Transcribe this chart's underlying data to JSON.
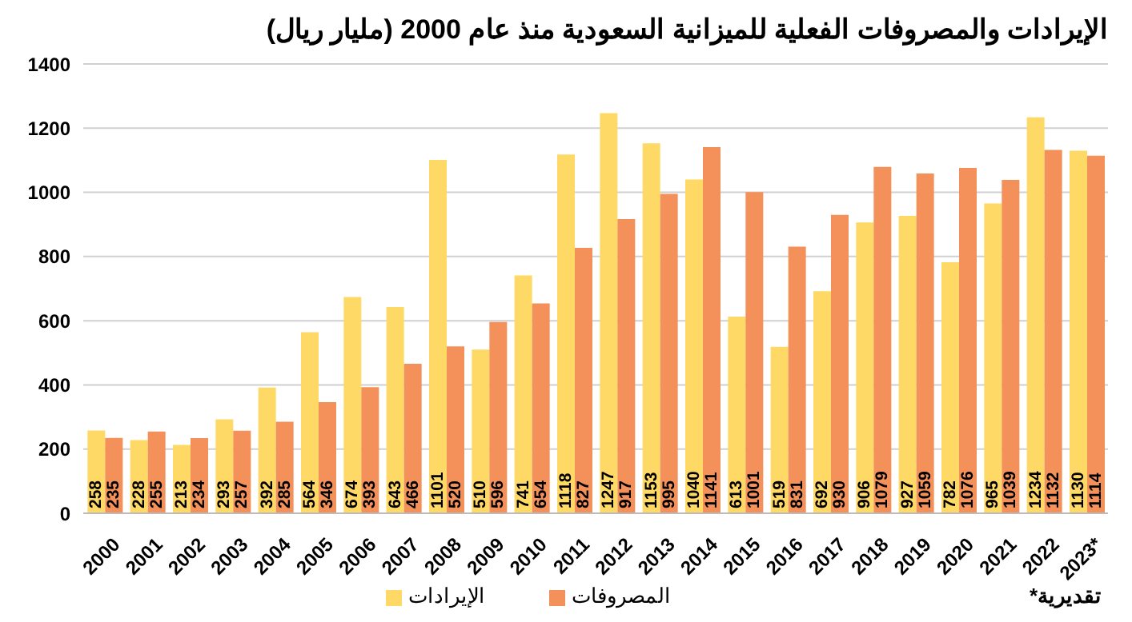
{
  "chart_data": {
    "type": "bar",
    "title": "الإيرادات والمصروفات الفعلية للميزانية السعودية منذ عام 2000 (مليار ريال)",
    "categories": [
      "2000",
      "2001",
      "2002",
      "2003",
      "2004",
      "2005",
      "2006",
      "2007",
      "2008",
      "2009",
      "2010",
      "2011",
      "2012",
      "2013",
      "2014",
      "2015",
      "2016",
      "2017",
      "2018",
      "2019",
      "2020",
      "2021",
      "2022",
      "2023*"
    ],
    "series": [
      {
        "name": "الإيرادات",
        "color": "#ffd966",
        "values": [
          258,
          228,
          213,
          293,
          392,
          564,
          674,
          643,
          1101,
          510,
          741,
          1118,
          1247,
          1153,
          1040,
          613,
          519,
          692,
          906,
          927,
          782,
          965,
          1234,
          1130
        ]
      },
      {
        "name": "المصروفات",
        "color": "#f4915a",
        "values": [
          235,
          255,
          234,
          257,
          285,
          346,
          393,
          466,
          520,
          596,
          654,
          827,
          917,
          995,
          1141,
          1001,
          831,
          930,
          1079,
          1059,
          1076,
          1039,
          1132,
          1114
        ]
      }
    ],
    "ylim": [
      0,
      1400
    ],
    "yticks": [
      0,
      200,
      400,
      600,
      800,
      1000,
      1200,
      1400
    ],
    "grid": "y",
    "legend": "bottom",
    "data_labels": true,
    "annotations": [
      "*تقديرية"
    ]
  }
}
